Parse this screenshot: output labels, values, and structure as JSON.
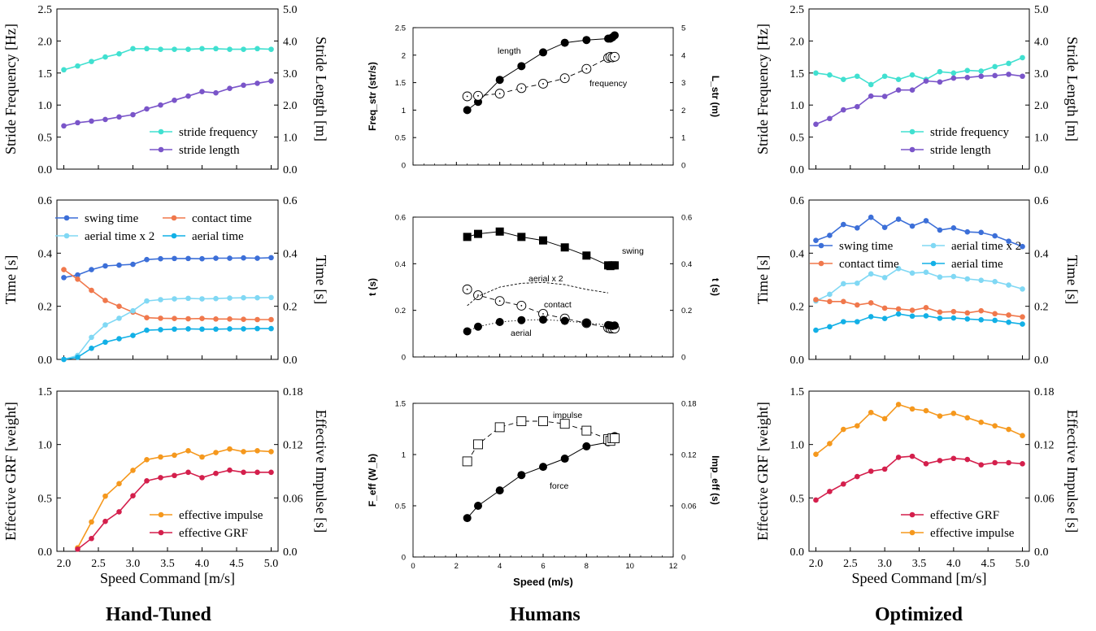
{
  "column_titles": [
    "Hand-Tuned",
    "Humans",
    "Optimized"
  ],
  "chart_data": [
    {
      "type": "line",
      "x": [
        2.0,
        2.2,
        2.4,
        2.6,
        2.8,
        3.0,
        3.2,
        3.4,
        3.6,
        3.8,
        4.0,
        4.2,
        4.4,
        4.6,
        4.8,
        5.0
      ],
      "xlim": [
        1.9,
        5.1
      ],
      "xticks": [
        2.0,
        2.5,
        3.0,
        3.5,
        4.0,
        4.5,
        5.0
      ],
      "xticklabels": [
        "",
        "",
        "",
        "",
        "",
        "",
        ""
      ],
      "xlabel": "",
      "ylabel": "Stride Frequency [Hz]",
      "ylim": [
        0,
        2.5
      ],
      "yticks": [
        0.0,
        0.5,
        1.0,
        1.5,
        2.0,
        2.5
      ],
      "yticklabels": [
        "0.0",
        "0.5",
        "1.0",
        "1.5",
        "2.0",
        "2.5"
      ],
      "y2label": "Stride Length [m]",
      "y2lim": [
        0,
        5
      ],
      "y2ticks": [
        0.0,
        1.0,
        2.0,
        3.0,
        4.0,
        5.0
      ],
      "y2ticklabels": [
        "0.0",
        "1.0",
        "2.0",
        "3.0",
        "4.0",
        "5.0"
      ],
      "legend": "bottom-right",
      "series": [
        {
          "name": "stride frequency",
          "color": "#40e0d0",
          "axis": "left",
          "values": [
            1.55,
            1.61,
            1.68,
            1.75,
            1.8,
            1.88,
            1.88,
            1.87,
            1.87,
            1.87,
            1.88,
            1.88,
            1.87,
            1.87,
            1.88,
            1.87
          ]
        },
        {
          "name": "stride length",
          "color": "#7a55c9",
          "axis": "right",
          "values": [
            1.35,
            1.45,
            1.5,
            1.55,
            1.63,
            1.7,
            1.88,
            2.0,
            2.15,
            2.28,
            2.42,
            2.38,
            2.52,
            2.62,
            2.68,
            2.75
          ]
        }
      ]
    },
    {
      "type": "line",
      "x": [
        2.0,
        2.2,
        2.4,
        2.6,
        2.8,
        3.0,
        3.2,
        3.4,
        3.6,
        3.8,
        4.0,
        4.2,
        4.4,
        4.6,
        4.8,
        5.0
      ],
      "xlim": [
        1.9,
        5.1
      ],
      "xticks": [
        2.0,
        2.5,
        3.0,
        3.5,
        4.0,
        4.5,
        5.0
      ],
      "xticklabels": [
        "",
        "",
        "",
        "",
        "",
        "",
        ""
      ],
      "xlabel": "",
      "ylabel": "Time [s]",
      "ylim": [
        0,
        0.6
      ],
      "yticks": [
        0.0,
        0.2,
        0.4,
        0.6
      ],
      "yticklabels": [
        "0.0",
        "0.2",
        "0.4",
        "0.6"
      ],
      "y2label": "Time [s]",
      "y2lim": [
        0,
        0.6
      ],
      "y2ticks": [
        0.0,
        0.2,
        0.4,
        0.6
      ],
      "y2ticklabels": [
        "0.0",
        "0.2",
        "0.4",
        "0.6"
      ],
      "legend": "top (two columns)",
      "series": [
        {
          "name": "swing time",
          "color": "#3c6fd8",
          "axis": "left",
          "values": [
            0.308,
            0.318,
            0.338,
            0.352,
            0.355,
            0.358,
            0.376,
            0.379,
            0.38,
            0.38,
            0.379,
            0.381,
            0.381,
            0.382,
            0.381,
            0.383
          ]
        },
        {
          "name": "contact time",
          "color": "#f0784c",
          "axis": "left",
          "values": [
            0.338,
            0.302,
            0.26,
            0.222,
            0.2,
            0.178,
            0.157,
            0.155,
            0.154,
            0.153,
            0.154,
            0.152,
            0.152,
            0.151,
            0.15,
            0.15
          ]
        },
        {
          "name": "aerial time x 2",
          "color": "#80d8f4",
          "axis": "left",
          "values": [
            0.0,
            0.015,
            0.083,
            0.13,
            0.155,
            0.183,
            0.22,
            0.225,
            0.228,
            0.23,
            0.228,
            0.229,
            0.231,
            0.232,
            0.232,
            0.233
          ]
        },
        {
          "name": "aerial time",
          "color": "#12b0e6",
          "axis": "left",
          "values": [
            0.0,
            0.008,
            0.042,
            0.065,
            0.078,
            0.09,
            0.11,
            0.112,
            0.114,
            0.115,
            0.114,
            0.114,
            0.115,
            0.115,
            0.116,
            0.116
          ]
        }
      ]
    },
    {
      "type": "line",
      "x": [
        2.2,
        2.4,
        2.6,
        2.8,
        3.0,
        3.2,
        3.4,
        3.6,
        3.8,
        4.0,
        4.2,
        4.4,
        4.6,
        4.8,
        5.0
      ],
      "xlim": [
        1.9,
        5.1
      ],
      "xticks": [
        2.0,
        2.5,
        3.0,
        3.5,
        4.0,
        4.5,
        5.0
      ],
      "xticklabels": [
        "2.0",
        "2.5",
        "3.0",
        "3.5",
        "4.0",
        "4.5",
        "5.0"
      ],
      "xlabel": "Speed Command [m/s]",
      "ylabel": "Effective GRF [weight]",
      "ylim": [
        0,
        1.5
      ],
      "yticks": [
        0.0,
        0.5,
        1.0,
        1.5
      ],
      "yticklabels": [
        "0.0",
        "0.5",
        "1.0",
        "1.5"
      ],
      "y2label": "Effective Impulse [s]",
      "y2lim": [
        0,
        0.18
      ],
      "y2ticks": [
        0.0,
        0.06,
        0.12,
        0.18
      ],
      "y2ticklabels": [
        "0.0",
        "0.06",
        "0.12",
        "0.18"
      ],
      "legend": "bottom-right",
      "series": [
        {
          "name": "effective impulse",
          "color": "#f5981d",
          "axis": "right",
          "values": [
            0.004,
            0.033,
            0.062,
            0.076,
            0.091,
            0.103,
            0.106,
            0.108,
            0.113,
            0.106,
            0.111,
            0.115,
            0.112,
            0.113,
            0.112
          ]
        },
        {
          "name": "effective GRF",
          "color": "#d41f4c",
          "axis": "left",
          "values": [
            0.02,
            0.12,
            0.28,
            0.37,
            0.52,
            0.66,
            0.69,
            0.71,
            0.74,
            0.69,
            0.73,
            0.76,
            0.74,
            0.74,
            0.74
          ]
        }
      ]
    },
    {
      "type": "line",
      "x": [
        2.5,
        3.0,
        4.0,
        5.0,
        6.0,
        7.0,
        8.0,
        9.0,
        9.1,
        9.2,
        9.3
      ],
      "xlim": [
        0,
        12
      ],
      "xticks": [
        0,
        2,
        4,
        6,
        8,
        10,
        12
      ],
      "xticklabels": [
        "",
        "",
        "",
        "",
        "",
        "",
        ""
      ],
      "xlabel": "",
      "ylabel": "Freq_str (str/s)",
      "ylim": [
        0,
        2.5
      ],
      "yticks": [
        0,
        0.5,
        1,
        1.5,
        2,
        2.5
      ],
      "yticklabels": [
        "0",
        "0.5",
        "1",
        "1.5",
        "2",
        "2.5"
      ],
      "y2label": "L_str (m)",
      "y2lim": [
        0,
        5
      ],
      "y2ticks": [
        0,
        1,
        2,
        3,
        4,
        5
      ],
      "y2ticklabels": [
        "0",
        "1",
        "2",
        "3",
        "4",
        "5"
      ],
      "annotations": [
        "length",
        "frequency"
      ],
      "series": [
        {
          "name": "length",
          "axis": "right",
          "values": [
            2.0,
            2.3,
            3.1,
            3.6,
            4.1,
            4.45,
            4.55,
            4.6,
            4.6,
            4.65,
            4.72
          ]
        },
        {
          "name": "frequency",
          "axis": "left",
          "values": [
            1.25,
            1.26,
            1.3,
            1.4,
            1.48,
            1.58,
            1.75,
            1.95,
            1.97,
            1.96,
            1.97
          ]
        }
      ]
    },
    {
      "type": "line",
      "x": [
        2.5,
        3.0,
        4.0,
        5.0,
        6.0,
        7.0,
        8.0,
        9.0,
        9.1,
        9.2,
        9.3
      ],
      "xlim": [
        0,
        12
      ],
      "xticks": [
        0,
        2,
        4,
        6,
        8,
        10,
        12
      ],
      "xticklabels": [
        "",
        "",
        "",
        "",
        "",
        "",
        ""
      ],
      "xlabel": "",
      "ylabel": "t (s)",
      "ylim": [
        0,
        0.6
      ],
      "yticks": [
        0,
        0.2,
        0.4,
        0.6
      ],
      "yticklabels": [
        "0",
        "0.2",
        "0.4",
        "0.6"
      ],
      "y2label": "t (s)",
      "y2lim": [
        0,
        0.6
      ],
      "y2ticks": [
        0,
        0.2,
        0.4,
        0.6
      ],
      "y2ticklabels": [
        "0",
        "0.2",
        "0.4",
        "0.6"
      ],
      "annotations": [
        "swing",
        "aerial x 2",
        "contact",
        "aerial"
      ],
      "series": [
        {
          "name": "swing",
          "values": [
            0.515,
            0.528,
            0.538,
            0.515,
            0.5,
            0.47,
            0.435,
            0.393,
            0.39,
            0.393,
            0.393
          ]
        },
        {
          "name": "contact",
          "values": [
            0.29,
            0.265,
            0.24,
            0.22,
            0.185,
            0.165,
            0.145,
            0.125,
            0.122,
            0.122,
            0.122
          ]
        },
        {
          "name": "aerial",
          "values": [
            0.11,
            0.13,
            0.15,
            0.158,
            0.16,
            0.155,
            0.145,
            0.137,
            0.135,
            0.133,
            0.135
          ]
        },
        {
          "name": "aerial x 2",
          "values": [
            0.22,
            0.26,
            0.3,
            0.316,
            0.32,
            0.31,
            0.29,
            0.275,
            0.27,
            0.27,
            0.27
          ]
        }
      ]
    },
    {
      "type": "line",
      "x": [
        2.5,
        3.0,
        4.0,
        5.0,
        6.0,
        7.0,
        8.0,
        9.0,
        9.1,
        9.2,
        9.3
      ],
      "xlim": [
        0,
        12
      ],
      "xticks": [
        0,
        2,
        4,
        6,
        8,
        10,
        12
      ],
      "xticklabels": [
        "0",
        "2",
        "4",
        "6",
        "8",
        "10",
        "12"
      ],
      "xlabel": "Speed (m/s)",
      "ylabel": "F_eff (W_b)",
      "ylim": [
        0,
        1.5
      ],
      "yticks": [
        0,
        0.5,
        1,
        1.5
      ],
      "yticklabels": [
        "0",
        "0.5",
        "1",
        "1.5"
      ],
      "y2label": "Imp_eff (s)",
      "y2lim": [
        0,
        0.18
      ],
      "y2ticks": [
        0,
        0.06,
        0.12,
        0.18
      ],
      "y2ticklabels": [
        "0",
        "0.06",
        "0.12",
        "0.18"
      ],
      "annotations": [
        "impulse",
        "force"
      ],
      "series": [
        {
          "name": "force",
          "axis": "left",
          "values": [
            0.38,
            0.5,
            0.65,
            0.8,
            0.88,
            0.96,
            1.08,
            1.12,
            1.15,
            1.17,
            1.18
          ]
        },
        {
          "name": "impulse",
          "axis": "right",
          "values": [
            0.112,
            0.132,
            0.152,
            0.159,
            0.159,
            0.156,
            0.148,
            0.138,
            0.136,
            0.139,
            0.139
          ]
        }
      ]
    },
    {
      "type": "line",
      "x": [
        2.0,
        2.2,
        2.4,
        2.6,
        2.8,
        3.0,
        3.2,
        3.4,
        3.6,
        3.8,
        4.0,
        4.2,
        4.4,
        4.6,
        4.8,
        5.0
      ],
      "xlim": [
        1.9,
        5.1
      ],
      "xticks": [
        2.0,
        2.5,
        3.0,
        3.5,
        4.0,
        4.5,
        5.0
      ],
      "xticklabels": [
        "",
        "",
        "",
        "",
        "",
        "",
        ""
      ],
      "xlabel": "",
      "ylabel": "Stride Frequency [Hz]",
      "ylim": [
        0,
        2.5
      ],
      "yticks": [
        0.0,
        0.5,
        1.0,
        1.5,
        2.0,
        2.5
      ],
      "yticklabels": [
        "0.0",
        "0.5",
        "1.0",
        "1.5",
        "2.0",
        "2.5"
      ],
      "y2label": "Stride Length [m]",
      "y2lim": [
        0,
        5
      ],
      "y2ticks": [
        0.0,
        1.0,
        2.0,
        3.0,
        4.0,
        5.0
      ],
      "y2ticklabels": [
        "0.0",
        "1.0",
        "2.0",
        "3.0",
        "4.0",
        "5.0"
      ],
      "legend": "bottom-right",
      "series": [
        {
          "name": "stride frequency",
          "color": "#40e0d0",
          "axis": "left",
          "values": [
            1.5,
            1.47,
            1.4,
            1.45,
            1.32,
            1.45,
            1.4,
            1.47,
            1.4,
            1.52,
            1.5,
            1.54,
            1.53,
            1.6,
            1.65,
            1.74
          ]
        },
        {
          "name": "stride length",
          "color": "#7a55c9",
          "axis": "right",
          "values": [
            1.4,
            1.58,
            1.85,
            1.95,
            2.28,
            2.27,
            2.47,
            2.47,
            2.75,
            2.72,
            2.84,
            2.86,
            2.9,
            2.92,
            2.96,
            2.9
          ]
        }
      ]
    },
    {
      "type": "line",
      "x": [
        2.0,
        2.2,
        2.4,
        2.6,
        2.8,
        3.0,
        3.2,
        3.4,
        3.6,
        3.8,
        4.0,
        4.2,
        4.4,
        4.6,
        4.8,
        5.0
      ],
      "xlim": [
        1.9,
        5.1
      ],
      "xticks": [
        2.0,
        2.5,
        3.0,
        3.5,
        4.0,
        4.5,
        5.0
      ],
      "xticklabels": [
        "",
        "",
        "",
        "",
        "",
        "",
        ""
      ],
      "xlabel": "",
      "ylabel": "Time [s]",
      "ylim": [
        0,
        0.6
      ],
      "yticks": [
        0.0,
        0.2,
        0.4,
        0.6
      ],
      "yticklabels": [
        "0.0",
        "0.2",
        "0.4",
        "0.6"
      ],
      "y2label": "Time [s]",
      "y2lim": [
        0,
        0.6
      ],
      "y2ticks": [
        0.0,
        0.2,
        0.4,
        0.6
      ],
      "y2ticklabels": [
        "0.0",
        "0.2",
        "0.4",
        "0.6"
      ],
      "legend": "middle (two columns)",
      "series": [
        {
          "name": "swing time",
          "color": "#3c6fd8",
          "axis": "left",
          "values": [
            0.448,
            0.467,
            0.508,
            0.495,
            0.535,
            0.497,
            0.528,
            0.502,
            0.522,
            0.487,
            0.495,
            0.48,
            0.478,
            0.465,
            0.445,
            0.425
          ]
        },
        {
          "name": "aerial time x 2",
          "color": "#80d8f4",
          "axis": "left",
          "values": [
            0.22,
            0.245,
            0.285,
            0.287,
            0.322,
            0.308,
            0.342,
            0.325,
            0.328,
            0.31,
            0.312,
            0.303,
            0.298,
            0.293,
            0.28,
            0.265
          ]
        },
        {
          "name": "contact time",
          "color": "#f0784c",
          "axis": "left",
          "values": [
            0.225,
            0.218,
            0.218,
            0.205,
            0.213,
            0.193,
            0.19,
            0.185,
            0.195,
            0.178,
            0.18,
            0.175,
            0.183,
            0.172,
            0.167,
            0.16
          ]
        },
        {
          "name": "aerial time",
          "color": "#12b0e6",
          "axis": "left",
          "values": [
            0.11,
            0.123,
            0.142,
            0.142,
            0.161,
            0.154,
            0.171,
            0.163,
            0.164,
            0.155,
            0.156,
            0.152,
            0.149,
            0.147,
            0.14,
            0.133
          ]
        }
      ]
    },
    {
      "type": "line",
      "x": [
        2.0,
        2.2,
        2.4,
        2.6,
        2.8,
        3.0,
        3.2,
        3.4,
        3.6,
        3.8,
        4.0,
        4.2,
        4.4,
        4.6,
        4.8,
        5.0
      ],
      "xlim": [
        1.9,
        5.1
      ],
      "xticks": [
        2.0,
        2.5,
        3.0,
        3.5,
        4.0,
        4.5,
        5.0
      ],
      "xticklabels": [
        "2.0",
        "2.5",
        "3.0",
        "3.5",
        "4.0",
        "4.5",
        "5.0"
      ],
      "xlabel": "Speed Command [m/s]",
      "ylabel": "Effective GRF [weight]",
      "ylim": [
        0,
        1.5
      ],
      "yticks": [
        0.0,
        0.5,
        1.0,
        1.5
      ],
      "yticklabels": [
        "0.0",
        "0.5",
        "1.0",
        "1.5"
      ],
      "y2label": "Effective Impulse [s]",
      "y2lim": [
        0,
        0.18
      ],
      "y2ticks": [
        0.0,
        0.06,
        0.12,
        0.18
      ],
      "y2ticklabels": [
        "0.0",
        "0.06",
        "0.12",
        "0.18"
      ],
      "legend": "bottom-right",
      "series": [
        {
          "name": "effective GRF",
          "color": "#d41f4c",
          "axis": "left",
          "values": [
            0.48,
            0.56,
            0.63,
            0.7,
            0.75,
            0.77,
            0.88,
            0.89,
            0.82,
            0.85,
            0.87,
            0.86,
            0.81,
            0.83,
            0.83,
            0.82
          ]
        },
        {
          "name": "effective impulse",
          "color": "#f5981d",
          "axis": "right",
          "values": [
            0.109,
            0.121,
            0.137,
            0.141,
            0.156,
            0.149,
            0.165,
            0.16,
            0.158,
            0.152,
            0.155,
            0.15,
            0.145,
            0.141,
            0.137,
            0.13
          ]
        }
      ]
    }
  ]
}
